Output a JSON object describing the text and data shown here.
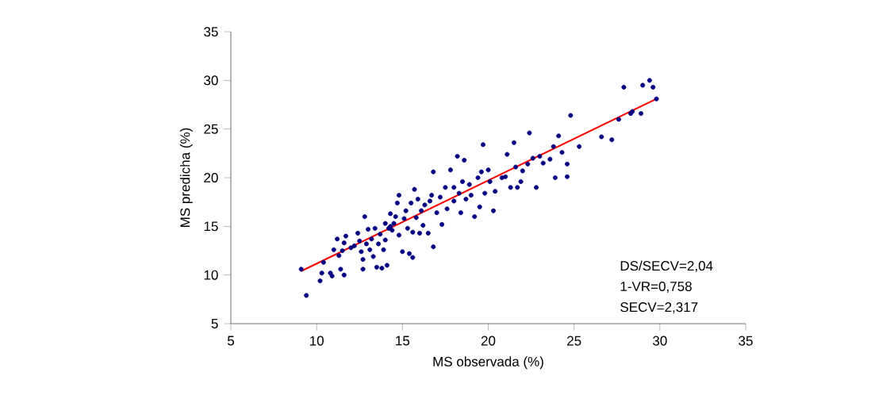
{
  "chart_data": {
    "type": "scatter",
    "xlabel": "MS observada (%)",
    "ylabel": "MS predicha (%)",
    "xlim": [
      5,
      35
    ],
    "ylim": [
      5,
      35
    ],
    "xticks": [
      5,
      10,
      15,
      20,
      25,
      30,
      35
    ],
    "yticks": [
      5,
      10,
      15,
      20,
      25,
      30,
      35
    ],
    "grid": false,
    "annotations": [
      "DS/SECV=2,04",
      "1-VR=0,758",
      "SECV=2,317"
    ],
    "series": [
      {
        "marker": "circle",
        "color": "#000080",
        "x": [
          9.1,
          9.4,
          10.2,
          10.3,
          10.4,
          10.8,
          10.9,
          11.0,
          11.2,
          11.3,
          11.4,
          11.5,
          11.6,
          11.6,
          11.7,
          12.0,
          12.2,
          12.4,
          12.5,
          12.6,
          12.7,
          12.7,
          12.8,
          12.9,
          13.0,
          13.1,
          13.2,
          13.3,
          13.4,
          13.5,
          13.6,
          13.7,
          13.8,
          13.9,
          14.0,
          14.0,
          14.1,
          14.2,
          14.3,
          14.3,
          14.4,
          14.5,
          14.6,
          14.7,
          14.8,
          14.8,
          15.0,
          15.1,
          15.2,
          15.3,
          15.4,
          15.5,
          15.6,
          15.6,
          15.7,
          15.8,
          15.9,
          16.0,
          16.1,
          16.2,
          16.3,
          16.5,
          16.6,
          16.7,
          16.8,
          16.8,
          17.0,
          17.2,
          17.3,
          17.5,
          17.6,
          17.8,
          18.0,
          18.0,
          18.2,
          18.3,
          18.4,
          18.5,
          18.6,
          18.7,
          18.9,
          19.0,
          19.2,
          19.4,
          19.5,
          19.6,
          19.7,
          19.8,
          20.0,
          20.1,
          20.3,
          20.4,
          20.8,
          21.0,
          21.1,
          21.3,
          21.5,
          21.6,
          21.7,
          21.9,
          22.0,
          22.3,
          22.4,
          22.6,
          22.8,
          23.0,
          23.2,
          23.6,
          23.8,
          23.9,
          24.1,
          24.3,
          24.6,
          24.6,
          24.8,
          25.3,
          26.6,
          27.2,
          27.6,
          27.9,
          28.3,
          28.4,
          28.9,
          29.0,
          29.4,
          29.6,
          29.8
        ],
        "values": [
          10.6,
          7.9,
          9.4,
          10.2,
          11.3,
          10.2,
          9.9,
          12.6,
          13.7,
          12.0,
          10.6,
          12.5,
          13.3,
          10.0,
          14.0,
          12.8,
          13.0,
          14.3,
          13.5,
          12.4,
          11.6,
          10.6,
          16.0,
          13.2,
          14.7,
          12.6,
          13.7,
          11.9,
          14.8,
          10.8,
          13.2,
          14.2,
          10.7,
          12.6,
          15.3,
          13.6,
          11.0,
          14.8,
          16.3,
          15.0,
          14.6,
          15.3,
          16.0,
          17.4,
          18.2,
          14.1,
          12.4,
          15.8,
          16.6,
          14.8,
          12.2,
          17.4,
          14.4,
          11.8,
          18.8,
          15.9,
          17.8,
          14.3,
          16.6,
          15.1,
          17.2,
          14.3,
          17.6,
          18.2,
          20.6,
          12.9,
          16.4,
          18.0,
          15.2,
          19.0,
          16.8,
          20.8,
          17.6,
          19.0,
          22.2,
          18.4,
          16.4,
          19.6,
          21.8,
          17.8,
          19.3,
          18.2,
          16.0,
          20.0,
          17.0,
          20.6,
          23.4,
          18.4,
          20.8,
          19.6,
          16.6,
          18.6,
          20.0,
          20.1,
          22.4,
          19.0,
          23.6,
          21.1,
          19.0,
          19.6,
          20.7,
          21.4,
          24.6,
          22.0,
          19.0,
          22.2,
          21.5,
          21.9,
          23.2,
          20.0,
          24.3,
          22.6,
          21.4,
          20.1,
          26.4,
          23.2,
          24.2,
          23.9,
          26.0,
          29.3,
          26.6,
          26.8,
          26.6,
          29.5,
          30.0,
          29.3,
          28.1
        ]
      },
      {
        "type": "line",
        "marker": "none",
        "color": "#ff0000",
        "x": [
          9.1,
          29.8
        ],
        "values": [
          10.4,
          28.1
        ]
      }
    ]
  }
}
